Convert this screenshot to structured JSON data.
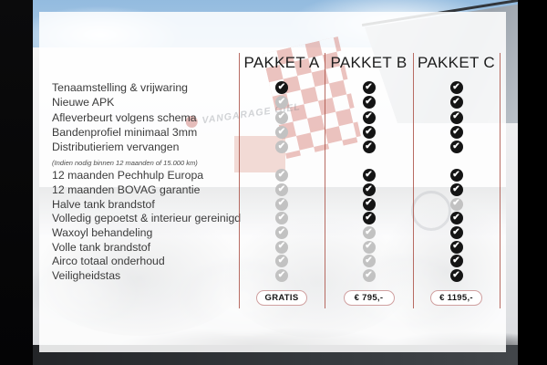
{
  "table": {
    "headers": [
      "PAKKET A",
      "PAKKET B",
      "PAKKET C"
    ],
    "groups": [
      {
        "rows": [
          {
            "label": "Tenaamstelling & vrijwaring",
            "checks": [
              "on",
              "on",
              "on"
            ]
          },
          {
            "label": "Nieuwe APK",
            "checks": [
              "off",
              "on",
              "on"
            ]
          },
          {
            "label": "Afleverbeurt volgens schema",
            "checks": [
              "off",
              "on",
              "on"
            ]
          },
          {
            "label": "Bandenprofiel minimaal 3mm",
            "checks": [
              "off",
              "on",
              "on"
            ]
          },
          {
            "label": "Distributieriem vervangen",
            "sub": "(Indien nodig binnen 12 maanden of 15.000 km)",
            "checks": [
              "off",
              "on",
              "on"
            ]
          }
        ]
      },
      {
        "rows": [
          {
            "label": "12 maanden Pechhulp Europa",
            "checks": [
              "off",
              "on",
              "on"
            ]
          },
          {
            "label": "12 maanden BOVAG garantie",
            "checks": [
              "off",
              "on",
              "on"
            ]
          },
          {
            "label": "Halve tank brandstof",
            "checks": [
              "off",
              "on",
              "off"
            ]
          },
          {
            "label": "Volledig gepoetst & interieur gereinigd",
            "checks": [
              "off",
              "on",
              "on"
            ]
          },
          {
            "label": "Waxoyl behandeling",
            "checks": [
              "off",
              "off",
              "on"
            ]
          },
          {
            "label": "Volle tank brandstof",
            "checks": [
              "off",
              "off",
              "on"
            ]
          },
          {
            "label": "Airco totaal onderhoud",
            "checks": [
              "off",
              "off",
              "on"
            ]
          },
          {
            "label": "Veiligheidstas",
            "checks": [
              "off",
              "off",
              "on"
            ]
          }
        ]
      }
    ],
    "prices": [
      "GRATIS",
      "€ 795,-",
      "€ 1195,-"
    ]
  },
  "background": {
    "sign_text": "VANGARAGE GIEL"
  },
  "colors": {
    "check_on": "#151515",
    "check_off": "#c2c2c2",
    "divider": "#ab5248",
    "pill_border": "#d0a0a0",
    "flag_red": "#c0392b"
  }
}
